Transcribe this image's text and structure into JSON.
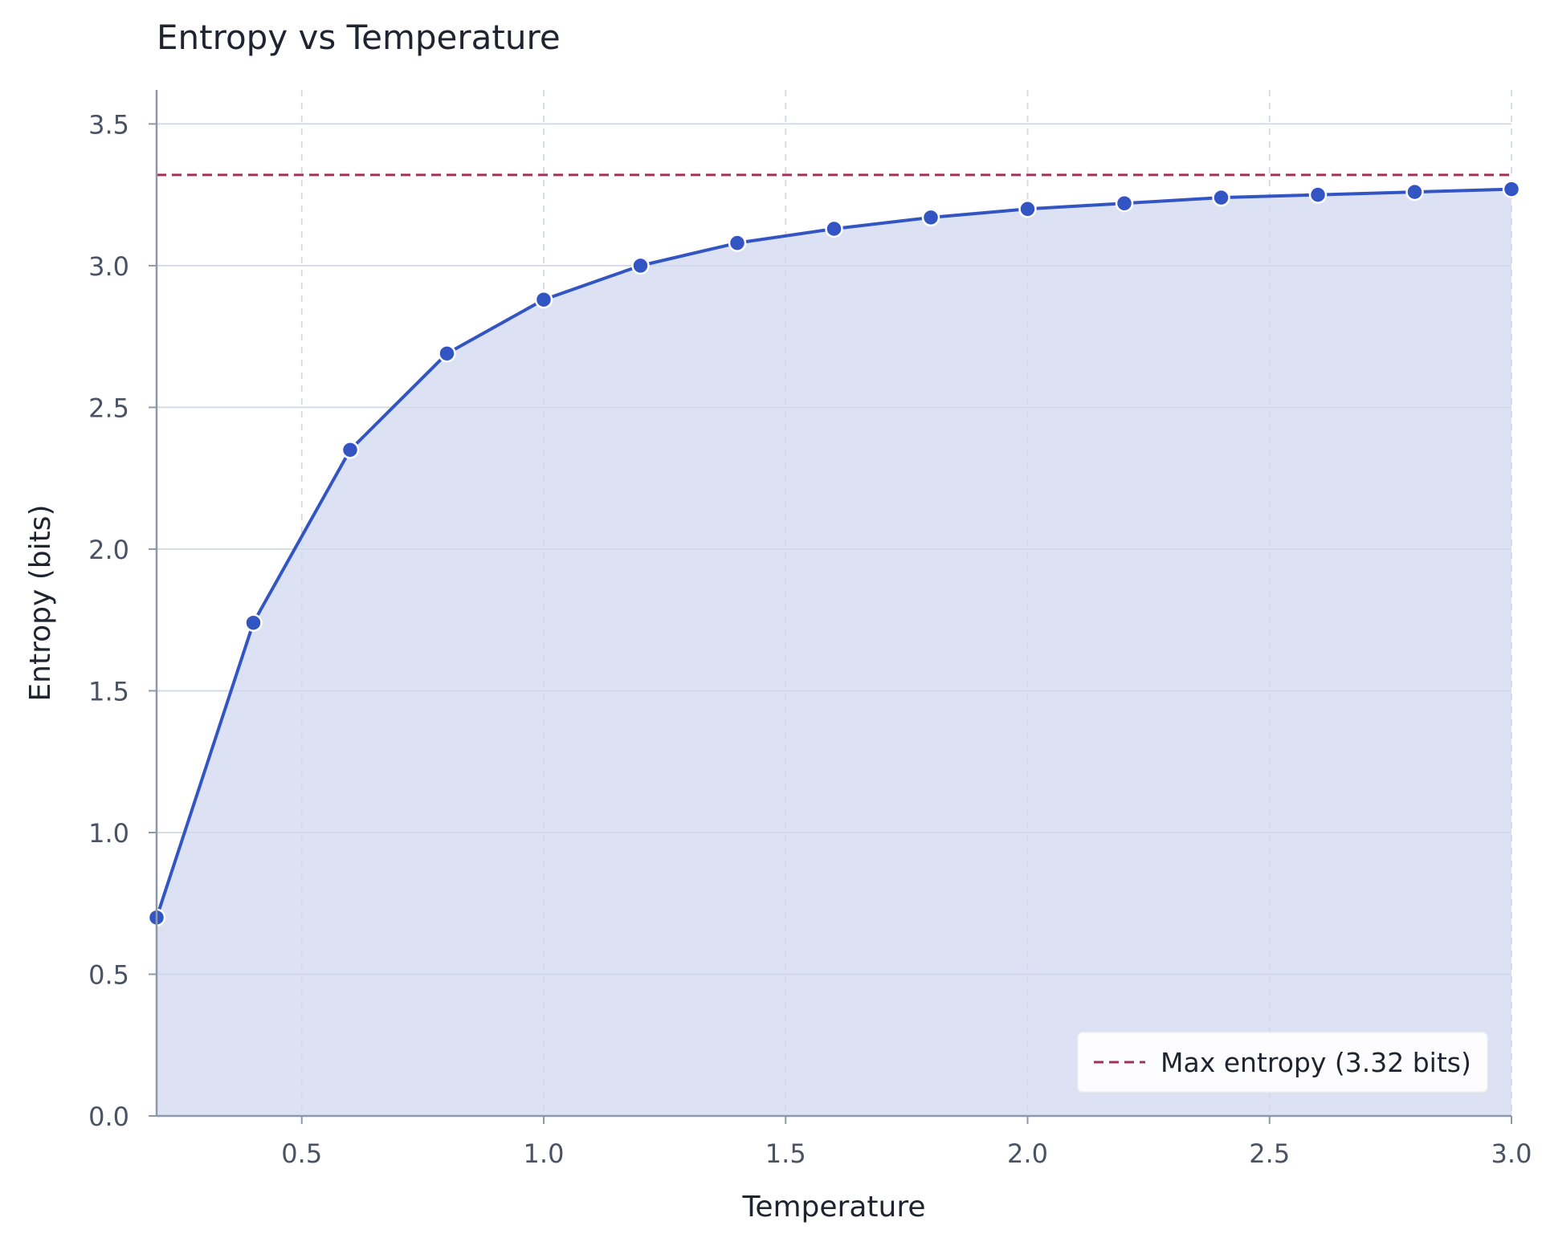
{
  "chart_data": {
    "type": "area",
    "title": "Entropy vs Temperature",
    "xlabel": "Temperature",
    "ylabel": "Entropy (bits)",
    "xlim": [
      0.2,
      3.0
    ],
    "ylim": [
      0.0,
      3.62
    ],
    "xticks": [
      0.5,
      1.0,
      1.5,
      2.0,
      2.5,
      3.0
    ],
    "xtick_labels": [
      "0.5",
      "1.0",
      "1.5",
      "2.0",
      "2.5",
      "3.0"
    ],
    "yticks": [
      0.0,
      0.5,
      1.0,
      1.5,
      2.0,
      2.5,
      3.0,
      3.5
    ],
    "ytick_labels": [
      "0.0",
      "0.5",
      "1.0",
      "1.5",
      "2.0",
      "2.5",
      "3.0",
      "3.5"
    ],
    "grid": true,
    "series": [
      {
        "x": [
          0.2,
          0.4,
          0.6,
          0.8,
          1.0,
          1.2,
          1.4,
          1.6,
          1.8,
          2.0,
          2.2,
          2.4,
          2.6,
          2.8,
          3.0
        ],
        "y": [
          0.7,
          1.74,
          2.35,
          2.69,
          2.88,
          3.0,
          3.08,
          3.13,
          3.17,
          3.2,
          3.22,
          3.24,
          3.25,
          3.26,
          3.27
        ],
        "color": "#3355c4",
        "fill": "#dae0f3"
      }
    ],
    "reference_line": {
      "y": 3.32,
      "label": "Max entropy (3.32 bits)",
      "color": "#a0325a",
      "style": "dashed"
    },
    "legend": {
      "position": "bottom-right",
      "entries": [
        "Max entropy (3.32 bits)"
      ]
    }
  }
}
